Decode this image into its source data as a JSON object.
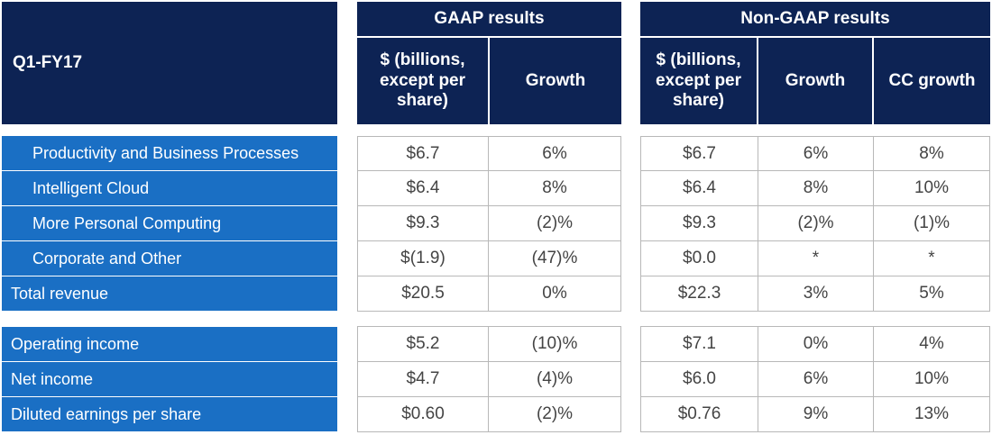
{
  "table": {
    "period_label": "Q1-FY17",
    "gaap": {
      "title": "GAAP results",
      "columns": [
        "$ (billions, except per share)",
        "Growth"
      ]
    },
    "nongaap": {
      "title": "Non-GAAP results",
      "columns": [
        "$ (billions, except per share)",
        "Growth",
        "CC growth"
      ]
    },
    "revenue_rows": [
      {
        "label": "Productivity and Business Processes",
        "gaap_value": "$6.7",
        "gaap_growth": "6%",
        "ng_value": "$6.7",
        "ng_growth": "6%",
        "ng_cc_growth": "8%"
      },
      {
        "label": "Intelligent Cloud",
        "gaap_value": "$6.4",
        "gaap_growth": "8%",
        "ng_value": "$6.4",
        "ng_growth": "8%",
        "ng_cc_growth": "10%"
      },
      {
        "label": "More Personal Computing",
        "gaap_value": "$9.3",
        "gaap_growth": "(2)%",
        "ng_value": "$9.3",
        "ng_growth": "(2)%",
        "ng_cc_growth": "(1)%"
      },
      {
        "label": "Corporate and Other",
        "gaap_value": "$(1.9)",
        "gaap_growth": "(47)%",
        "ng_value": "$0.0",
        "ng_growth": "*",
        "ng_cc_growth": "*"
      },
      {
        "label": "Total revenue",
        "gaap_value": "$20.5",
        "gaap_growth": "0%",
        "ng_value": "$22.3",
        "ng_growth": "3%",
        "ng_cc_growth": "5%"
      }
    ],
    "income_rows": [
      {
        "label": "Operating income",
        "gaap_value": "$5.2",
        "gaap_growth": "(10)%",
        "ng_value": "$7.1",
        "ng_growth": "0%",
        "ng_cc_growth": "4%"
      },
      {
        "label": "Net income",
        "gaap_value": "$4.7",
        "gaap_growth": "(4)%",
        "ng_value": "$6.0",
        "ng_growth": "6%",
        "ng_cc_growth": "10%"
      },
      {
        "label": "Diluted earnings per share",
        "gaap_value": "$0.60",
        "gaap_growth": "(2)%",
        "ng_value": "$0.76",
        "ng_growth": "9%",
        "ng_cc_growth": "13%"
      }
    ]
  },
  "colors": {
    "header_navy": "#0d2354",
    "label_blue": "#1a6fc4",
    "cell_border": "#b8b8b8",
    "cell_text": "#444444"
  }
}
